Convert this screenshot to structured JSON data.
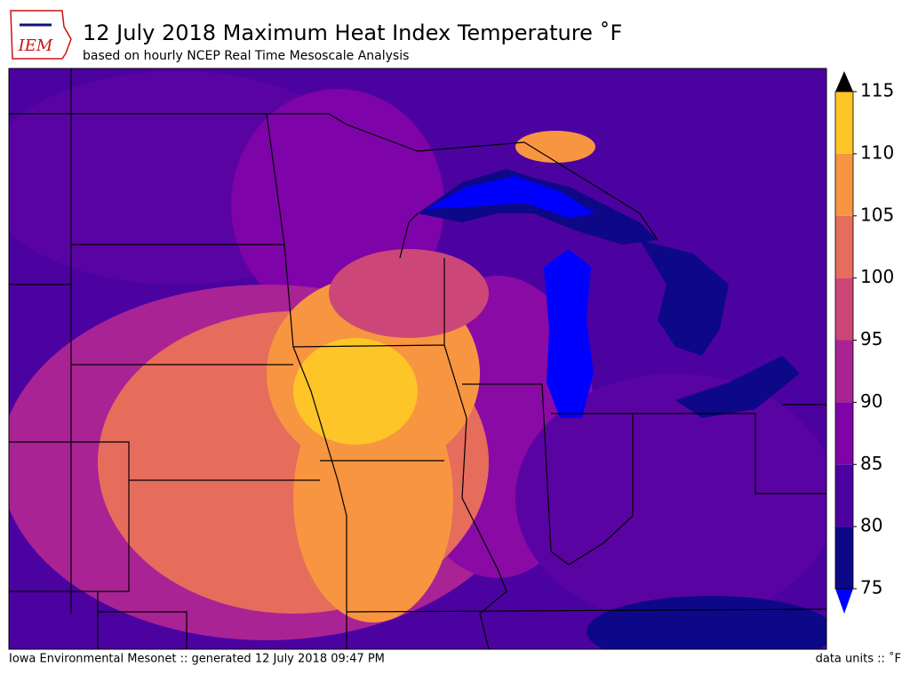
{
  "header": {
    "logo": "IEM",
    "title": "12 July 2018 Maximum Heat Index Temperature ˚F",
    "subtitle": "based on hourly NCEP Real Time Mesoscale Analysis"
  },
  "colorbar": {
    "ticks": [
      75,
      80,
      85,
      90,
      95,
      100,
      105,
      110,
      115
    ],
    "colors": [
      "#0d0887",
      "#4c02a1",
      "#7e03a8",
      "#a92395",
      "#cc4778",
      "#e66c5c",
      "#f89540",
      "#fdc527"
    ],
    "under_color": "#0000ff",
    "over_color": "#000000"
  },
  "footer": {
    "left": "Iowa Environmental Mesonet :: generated 12 July 2018 09:47 PM",
    "right": "data units :: ˚F"
  }
}
